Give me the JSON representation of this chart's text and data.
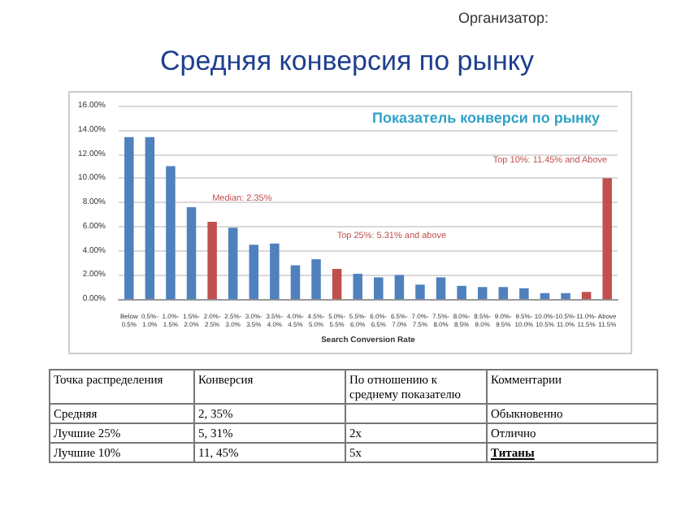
{
  "chart_data": {
    "type": "bar",
    "title": "Средняя конверсия по рынку",
    "subtitle": "Показатель конверси по рынку",
    "xlabel": "Search Conversion Rate",
    "categories": [
      "Below 0.5%",
      "0.5%- 1.0%",
      "1.0%- 1.5%",
      "1.5%- 2.0%",
      "2.0%- 2.5%",
      "2.5%- 3.0%",
      "3.0%- 3.5%",
      "3.5%- 4.0%",
      "4.0%- 4.5%",
      "4.5%- 5.0%",
      "5.0%- 5.5%",
      "5.5%- 6.0%",
      "6.0%- 6.5%",
      "6.5%- 7.0%",
      "7.0%- 7.5%",
      "7.5%- 8.0%",
      "8.0%- 8.5%",
      "8.5%- 9.0%",
      "9.0%- 9.5%",
      "9.5%- 10.0%",
      "10.0%- 10.5%",
      "10.5%- 11.0%",
      "11.0%- 11.5%",
      "Above 11.5%"
    ],
    "values": [
      13.4,
      13.4,
      11.0,
      7.6,
      6.4,
      5.9,
      4.5,
      4.6,
      2.8,
      3.3,
      2.5,
      2.1,
      1.8,
      2.0,
      1.2,
      1.8,
      1.1,
      1.0,
      1.0,
      0.9,
      0.5,
      0.5,
      0.6,
      10.0
    ],
    "colors": [
      "#4f81bd",
      "#4f81bd",
      "#4f81bd",
      "#4f81bd",
      "#c0504d",
      "#4f81bd",
      "#4f81bd",
      "#4f81bd",
      "#4f81bd",
      "#4f81bd",
      "#c0504d",
      "#4f81bd",
      "#4f81bd",
      "#4f81bd",
      "#4f81bd",
      "#4f81bd",
      "#4f81bd",
      "#4f81bd",
      "#4f81bd",
      "#4f81bd",
      "#4f81bd",
      "#4f81bd",
      "#c0504d",
      "#c0504d"
    ],
    "ylim": [
      0,
      16
    ],
    "yticks": [
      {
        "value": 0,
        "label": "0.00%"
      },
      {
        "value": 2,
        "label": "2.00%"
      },
      {
        "value": 4,
        "label": "4.00%"
      },
      {
        "value": 6,
        "label": "6.00%"
      },
      {
        "value": 8,
        "label": "8.00%"
      },
      {
        "value": 10,
        "label": "10.00%"
      },
      {
        "value": 12,
        "label": "12.00%"
      },
      {
        "value": 14,
        "label": "14.00%"
      },
      {
        "value": 16,
        "label": "16.00%"
      }
    ],
    "grid": "y",
    "annotations": [
      "Median: 2.35%",
      "Top 25%: 5.31% and above",
      "Top 10%: 11.45% and Above",
      "Организатор:",
      "Точка распределения",
      "Конверсия",
      "По отношению к среднему показателю",
      "Комментарии",
      "Средняя",
      "2, 35%",
      "Обыкновенно",
      "Лучшие 25%",
      "5, 31%",
      "2x",
      "Отлично",
      "Лучшие 10%",
      "11, 45%",
      "5x",
      "Титаны"
    ]
  }
}
